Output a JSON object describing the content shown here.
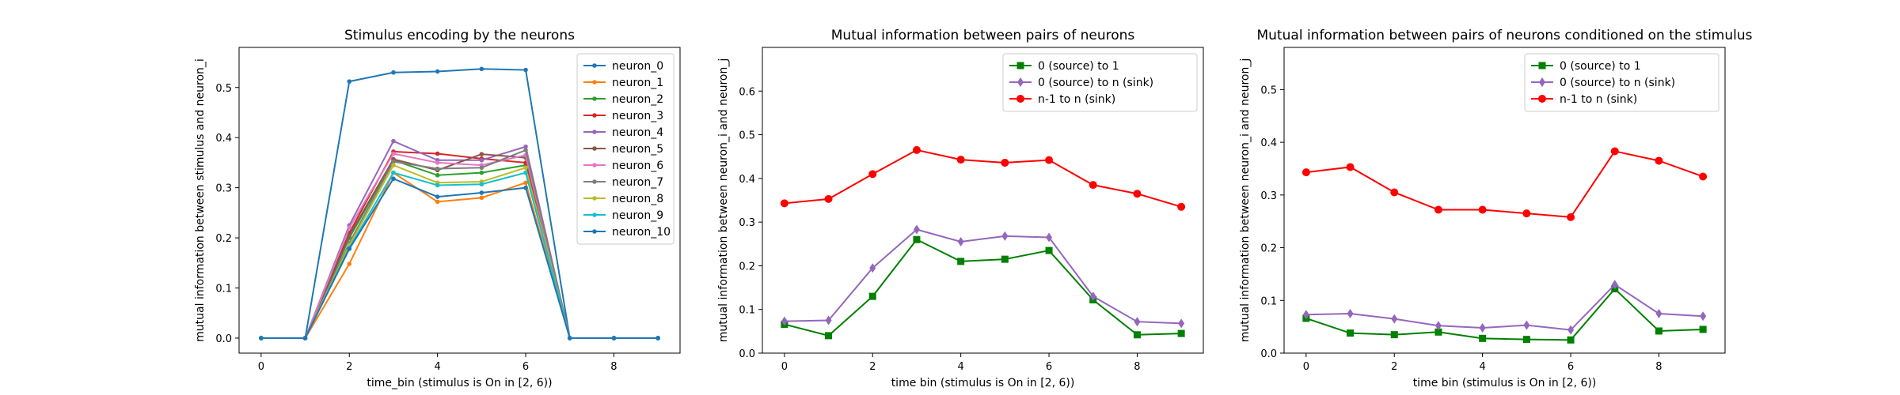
{
  "chart_data": [
    {
      "type": "line",
      "title": "Stimulus encoding by the neurons",
      "xlabel": "time_bin (stimulus is On in [2, 6))",
      "ylabel": "mutual information between stimulus and neuron_i",
      "xlim": [
        -0.5,
        9.5
      ],
      "ylim": [
        -0.03,
        0.58
      ],
      "xticks": [
        0,
        2,
        4,
        6,
        8
      ],
      "yticks": [
        0.0,
        0.1,
        0.2,
        0.3,
        0.4,
        0.5
      ],
      "ytick_format": 1,
      "legend_position": "top-right",
      "x": [
        0,
        1,
        2,
        3,
        4,
        5,
        6,
        7,
        8,
        9
      ],
      "series": [
        {
          "name": "neuron_0",
          "color": "#1f77b4",
          "marker": "point",
          "values": [
            0,
            0,
            0.512,
            0.53,
            0.532,
            0.537,
            0.535,
            0,
            0,
            0
          ]
        },
        {
          "name": "neuron_1",
          "color": "#ff7f0e",
          "marker": "point",
          "values": [
            0,
            0,
            0.148,
            0.33,
            0.272,
            0.28,
            0.31,
            0,
            0,
            0
          ]
        },
        {
          "name": "neuron_2",
          "color": "#2ca02c",
          "marker": "point",
          "values": [
            0,
            0,
            0.2,
            0.355,
            0.325,
            0.33,
            0.345,
            0,
            0,
            0
          ]
        },
        {
          "name": "neuron_3",
          "color": "#d62728",
          "marker": "point",
          "values": [
            0,
            0,
            0.21,
            0.372,
            0.368,
            0.358,
            0.35,
            0,
            0,
            0
          ]
        },
        {
          "name": "neuron_4",
          "color": "#9467bd",
          "marker": "point",
          "values": [
            0,
            0,
            0.225,
            0.393,
            0.355,
            0.355,
            0.382,
            0,
            0,
            0
          ]
        },
        {
          "name": "neuron_5",
          "color": "#8c564b",
          "marker": "point",
          "values": [
            0,
            0,
            0.205,
            0.357,
            0.335,
            0.367,
            0.36,
            0,
            0,
            0
          ]
        },
        {
          "name": "neuron_6",
          "color": "#e377c2",
          "marker": "point",
          "values": [
            0,
            0,
            0.22,
            0.368,
            0.35,
            0.345,
            0.365,
            0,
            0,
            0
          ]
        },
        {
          "name": "neuron_7",
          "color": "#7f7f7f",
          "marker": "point",
          "values": [
            0,
            0,
            0.19,
            0.352,
            0.338,
            0.34,
            0.375,
            0,
            0,
            0
          ]
        },
        {
          "name": "neuron_8",
          "color": "#bcbd22",
          "marker": "point",
          "values": [
            0,
            0,
            0.185,
            0.345,
            0.31,
            0.312,
            0.34,
            0,
            0,
            0
          ]
        },
        {
          "name": "neuron_9",
          "color": "#17becf",
          "marker": "point",
          "values": [
            0,
            0,
            0.18,
            0.33,
            0.305,
            0.307,
            0.33,
            0,
            0,
            0
          ]
        },
        {
          "name": "neuron_10",
          "color": "#1f77b4",
          "marker": "point",
          "values": [
            0,
            0,
            0.178,
            0.318,
            0.282,
            0.29,
            0.3,
            0,
            0,
            0
          ]
        }
      ]
    },
    {
      "type": "line",
      "title": "Mutual information between pairs of neurons",
      "xlabel": "time bin (stimulus is On in [2, 6))",
      "ylabel": "mutual information between neuron_i and neuron_j",
      "xlim": [
        -0.5,
        9.5
      ],
      "ylim": [
        0.0,
        0.7
      ],
      "xticks": [
        0,
        2,
        4,
        6,
        8
      ],
      "yticks": [
        0.0,
        0.1,
        0.2,
        0.3,
        0.4,
        0.5,
        0.6
      ],
      "ytick_format": 1,
      "legend_position": "top-right",
      "x": [
        0,
        1,
        2,
        3,
        4,
        5,
        6,
        7,
        8,
        9
      ],
      "series": [
        {
          "name": "0 (source) to 1",
          "color": "#008000",
          "marker": "square",
          "values": [
            0.066,
            0.04,
            0.13,
            0.26,
            0.21,
            0.215,
            0.235,
            0.122,
            0.042,
            0.045
          ]
        },
        {
          "name": "0 (source) to n (sink)",
          "color": "#9467bd",
          "marker": "diamond",
          "values": [
            0.073,
            0.075,
            0.195,
            0.283,
            0.255,
            0.268,
            0.265,
            0.13,
            0.072,
            0.068
          ]
        },
        {
          "name": "n-1 to n (sink)",
          "color": "#ff0000",
          "marker": "circle",
          "values": [
            0.343,
            0.353,
            0.41,
            0.465,
            0.443,
            0.436,
            0.442,
            0.385,
            0.365,
            0.335
          ]
        }
      ]
    },
    {
      "type": "line",
      "title": "Mutual information between pairs of neurons conditioned on the stimulus",
      "xlabel": "time bin (stimulus is On in [2, 6))",
      "ylabel": "mutual information between neuron_i and neuron_j",
      "xlim": [
        -0.5,
        9.5
      ],
      "ylim": [
        0.0,
        0.58
      ],
      "xticks": [
        0,
        2,
        4,
        6,
        8
      ],
      "yticks": [
        0.0,
        0.1,
        0.2,
        0.3,
        0.4,
        0.5
      ],
      "ytick_format": 1,
      "legend_position": "top-right",
      "x": [
        0,
        1,
        2,
        3,
        4,
        5,
        6,
        7,
        8,
        9
      ],
      "series": [
        {
          "name": "0 (source) to 1",
          "color": "#008000",
          "marker": "square",
          "values": [
            0.066,
            0.038,
            0.035,
            0.04,
            0.028,
            0.026,
            0.025,
            0.122,
            0.042,
            0.045
          ]
        },
        {
          "name": "0 (source) to n (sink)",
          "color": "#9467bd",
          "marker": "diamond",
          "values": [
            0.073,
            0.075,
            0.065,
            0.052,
            0.048,
            0.053,
            0.044,
            0.13,
            0.075,
            0.07
          ]
        },
        {
          "name": "n-1 to n (sink)",
          "color": "#ff0000",
          "marker": "circle",
          "values": [
            0.343,
            0.353,
            0.305,
            0.272,
            0.272,
            0.265,
            0.258,
            0.383,
            0.365,
            0.335
          ]
        }
      ]
    }
  ]
}
